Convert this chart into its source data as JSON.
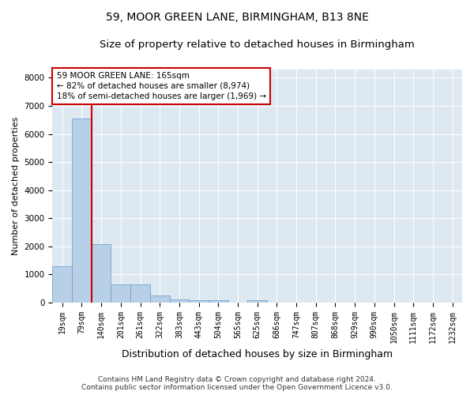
{
  "title": "59, MOOR GREEN LANE, BIRMINGHAM, B13 8NE",
  "subtitle": "Size of property relative to detached houses in Birmingham",
  "xlabel": "Distribution of detached houses by size in Birmingham",
  "ylabel": "Number of detached properties",
  "footer_line1": "Contains HM Land Registry data © Crown copyright and database right 2024.",
  "footer_line2": "Contains public sector information licensed under the Open Government Licence v3.0.",
  "bar_labels": [
    "19sqm",
    "79sqm",
    "140sqm",
    "201sqm",
    "261sqm",
    "322sqm",
    "383sqm",
    "443sqm",
    "504sqm",
    "565sqm",
    "625sqm",
    "686sqm",
    "747sqm",
    "807sqm",
    "868sqm",
    "929sqm",
    "990sqm",
    "1050sqm",
    "1111sqm",
    "1172sqm",
    "1232sqm"
  ],
  "bar_values": [
    1300,
    6550,
    2080,
    650,
    650,
    240,
    120,
    90,
    70,
    0,
    70,
    0,
    0,
    0,
    0,
    0,
    0,
    0,
    0,
    0,
    0
  ],
  "bar_color": "#b8cfe8",
  "bar_edgecolor": "#6699cc",
  "vline_color": "#cc0000",
  "annotation_text": "59 MOOR GREEN LANE: 165sqm\n← 82% of detached houses are smaller (8,974)\n18% of semi-detached houses are larger (1,969) →",
  "annotation_box_edgecolor": "#cc0000",
  "annotation_box_facecolor": "white",
  "ylim": [
    0,
    8300
  ],
  "yticks": [
    0,
    1000,
    2000,
    3000,
    4000,
    5000,
    6000,
    7000,
    8000
  ],
  "bg_color": "#dde8f0",
  "grid_color": "white",
  "title_fontsize": 10,
  "subtitle_fontsize": 9.5,
  "xlabel_fontsize": 9,
  "ylabel_fontsize": 8,
  "tick_fontsize": 7,
  "annot_fontsize": 7.5,
  "footer_fontsize": 6.5
}
